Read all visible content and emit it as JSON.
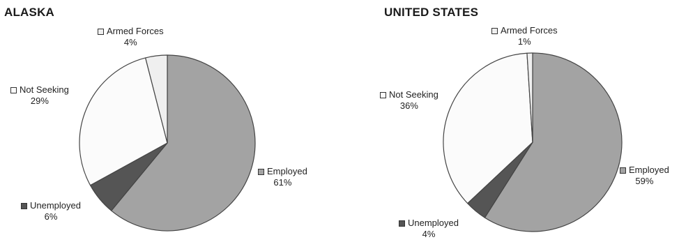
{
  "colors": {
    "employed": "#a3a3a3",
    "unemployed": "#555555",
    "not_seeking": "#fbfbfb",
    "armed_forces": "#efefef",
    "stroke": "#444444"
  },
  "chart_data": [
    {
      "type": "pie",
      "title": "ALASKA",
      "slices": [
        {
          "label": "Employed",
          "value": 61,
          "value_label": "61%",
          "color_key": "employed"
        },
        {
          "label": "Unemployed",
          "value": 6,
          "value_label": "6%",
          "color_key": "unemployed"
        },
        {
          "label": "Not Seeking",
          "value": 29,
          "value_label": "29%",
          "color_key": "not_seeking"
        },
        {
          "label": "Armed Forces",
          "value": 4,
          "value_label": "4%",
          "color_key": "armed_forces"
        }
      ]
    },
    {
      "type": "pie",
      "title": "UNITED STATES",
      "slices": [
        {
          "label": "Employed",
          "value": 59,
          "value_label": "59%",
          "color_key": "employed"
        },
        {
          "label": "Unemployed",
          "value": 4,
          "value_label": "4%",
          "color_key": "unemployed"
        },
        {
          "label": "Not Seeking",
          "value": 36,
          "value_label": "36%",
          "color_key": "not_seeking"
        },
        {
          "label": "Armed Forces",
          "value": 1,
          "value_label": "1%",
          "color_key": "armed_forces"
        }
      ]
    }
  ]
}
